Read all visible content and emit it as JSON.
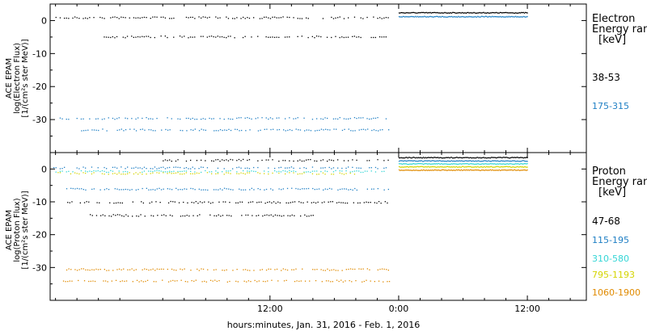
{
  "xaxis": {
    "label": "hours:minutes, Jan. 31, 2016 - Feb.  1, 2016",
    "range_hours": [
      -8.5,
      41.5
    ],
    "ticks": [
      {
        "hour": 12,
        "label": "12:00"
      },
      {
        "hour": 24,
        "label": "0:00"
      },
      {
        "hour": 36,
        "label": "12:00"
      }
    ]
  },
  "chart_data": [
    {
      "type": "scatter",
      "panel": "electron",
      "ylabel": [
        "ACE EPAM",
        "log(Electron Flux)",
        "[1/(cm²s ster MeV)]"
      ],
      "ylim": [
        -40,
        5
      ],
      "yticks": [
        {
          "value": 0,
          "label": "0"
        },
        {
          "value": -10,
          "label": "-10"
        },
        {
          "value": -20,
          "label": "-20"
        },
        {
          "value": -30,
          "label": "-30"
        }
      ],
      "legend_title": [
        "Electron",
        "Energy ran",
        "[keV]"
      ],
      "series": [
        {
          "name": "38-53",
          "color": "#000000",
          "segments": [
            {
              "x": [
                -8.2,
                23.1
              ],
              "y": 1.0
            },
            {
              "x": [
                -3.5,
                23.1
              ],
              "y": -4.8
            },
            {
              "x": [
                24.0,
                36.0
              ],
              "y": 2.5
            }
          ]
        },
        {
          "name": "175-315",
          "color": "#1f7fc4",
          "segments": [
            {
              "x": [
                -8.2,
                23.1
              ],
              "y": -29.5
            },
            {
              "x": [
                -6.0,
                23.1
              ],
              "y": -33.0
            },
            {
              "x": [
                24.0,
                36.0
              ],
              "y": 1.3
            }
          ]
        }
      ]
    },
    {
      "type": "scatter",
      "panel": "proton",
      "ylabel": [
        "ACE EPAM",
        "log(Proton Flux)",
        "[1/(cm²s ster MeV)]"
      ],
      "ylim": [
        -40,
        5
      ],
      "yticks": [
        {
          "value": 0,
          "label": "0"
        },
        {
          "value": -10,
          "label": "-10"
        },
        {
          "value": -20,
          "label": "-20"
        },
        {
          "value": -30,
          "label": "-30"
        }
      ],
      "legend_title": [
        "Proton",
        "Energy ran",
        "[keV]"
      ],
      "series": [
        {
          "name": "47-68",
          "color": "#000000",
          "segments": [
            {
              "x": [
                2.0,
                23.1
              ],
              "y": 2.8
            },
            {
              "x": [
                -7.5,
                23.1
              ],
              "y": -10.0
            },
            {
              "x": [
                -5.0,
                16.0
              ],
              "y": -14.0
            },
            {
              "x": [
                24.0,
                36.0
              ],
              "y": 3.6
            }
          ]
        },
        {
          "name": "115-195",
          "color": "#1f7fc4",
          "segments": [
            {
              "x": [
                -8.2,
                23.1
              ],
              "y": 0.5
            },
            {
              "x": [
                -7.0,
                23.1
              ],
              "y": -6.0
            },
            {
              "x": [
                24.0,
                36.0
              ],
              "y": 2.6
            }
          ]
        },
        {
          "name": "310-580",
          "color": "#35d6d6",
          "segments": [
            {
              "x": [
                -8.2,
                23.1
              ],
              "y": -0.6
            },
            {
              "x": [
                24.0,
                36.0
              ],
              "y": 1.7
            }
          ]
        },
        {
          "name": "795-1193",
          "color": "#d4d400",
          "segments": [
            {
              "x": [
                -8.2,
                20.0
              ],
              "y": -1.2
            },
            {
              "x": [
                24.0,
                36.0
              ],
              "y": 0.8
            }
          ]
        },
        {
          "name": "1060-1900",
          "color": "#e08a00",
          "segments": [
            {
              "x": [
                -7.0,
                23.1
              ],
              "y": -30.5
            },
            {
              "x": [
                -7.5,
                23.1
              ],
              "y": -34.0
            },
            {
              "x": [
                24.0,
                36.0
              ],
              "y": -0.2
            }
          ]
        }
      ]
    }
  ]
}
